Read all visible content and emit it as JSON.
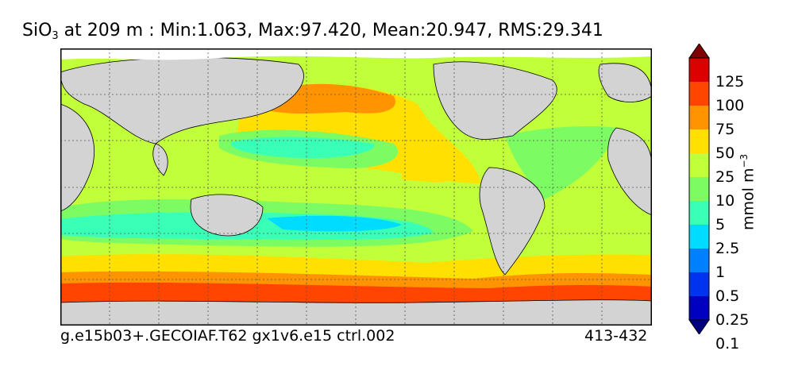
{
  "title": {
    "prefix": "SiO",
    "subscript": "3",
    "rest": " at 209 m : Min:1.063, Max:97.420, Mean:20.947, RMS:29.341"
  },
  "footer": {
    "run": "g.e15b03+.GECOIAF.T62 gx1v6.e15 ctrl.002",
    "years": "413-432"
  },
  "colorbar": {
    "unit_main": "mmol m",
    "unit_exp": "−3",
    "labels": [
      "125",
      "100",
      "75",
      "50",
      "25",
      "10",
      "5",
      "2.5",
      "1",
      "0.5",
      "0.25",
      "0.1"
    ],
    "colors_top_to_bottom": [
      "#7f0000",
      "#dd0000",
      "#ff4500",
      "#ff9400",
      "#ffe000",
      "#c0ff3a",
      "#7cfc62",
      "#3affb6",
      "#00dcff",
      "#0080ff",
      "#0033f0",
      "#0000c0",
      "#00007f"
    ],
    "extend": "both"
  },
  "map_colors": {
    "land": "#d3d3d3",
    "ice": "#ffffff",
    "frame": "#000000",
    "grid": "#555555"
  }
}
